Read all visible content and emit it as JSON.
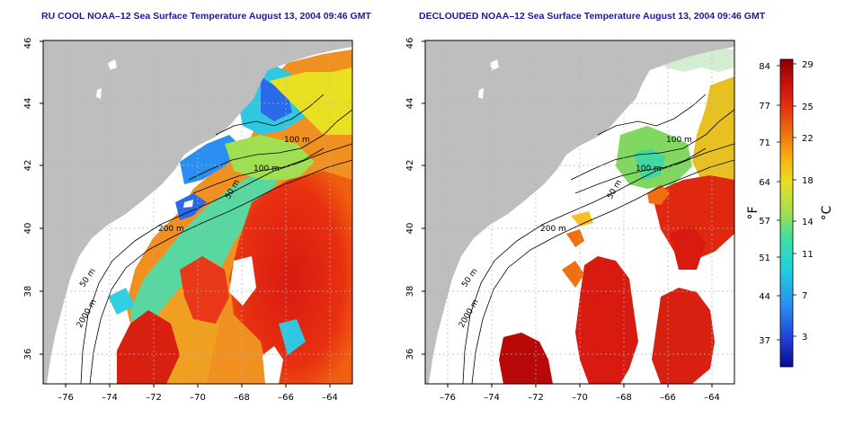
{
  "left_panel": {
    "title": "RU COOL NOAA–12 Sea Surface Temperature August 13, 2004 09:46 GMT",
    "contour_labels": [
      "100 m",
      "100 m",
      "50 m",
      "200 m",
      "50 m",
      "2000 m"
    ]
  },
  "right_panel": {
    "title": "DECLOUDED NOAA–12 Sea Surface Temperature August 13, 2004 09:46 GMT",
    "contour_labels": [
      "100 m",
      "100 m",
      "50 m",
      "200 m",
      "50 m",
      "2000 m"
    ]
  },
  "axes": {
    "lon_ticks": [
      "–76",
      "–74",
      "–72",
      "–70",
      "–68",
      "–66",
      "–64"
    ],
    "lat_ticks": [
      "36",
      "38",
      "40",
      "42",
      "44",
      "46"
    ]
  },
  "colorbar": {
    "fahrenheit_ticks": [
      "84",
      "77",
      "71",
      "64",
      "57",
      "51",
      "44",
      "37"
    ],
    "celsius_ticks": [
      "29",
      "25",
      "22",
      "18",
      "14",
      "11",
      "7",
      "3"
    ],
    "fahrenheit_unit": "°F",
    "celsius_unit": "°C",
    "colors": [
      "#0a0a8c",
      "#1f3fd8",
      "#2a8ff0",
      "#20d0e0",
      "#40e0a0",
      "#a0e050",
      "#e8e020",
      "#f8b010",
      "#f07010",
      "#e02810",
      "#b80808",
      "#8a0000"
    ]
  },
  "colors": {
    "land": "#bebebe",
    "ocean_missing": "#ffffff",
    "title": "#1a1a9c"
  }
}
